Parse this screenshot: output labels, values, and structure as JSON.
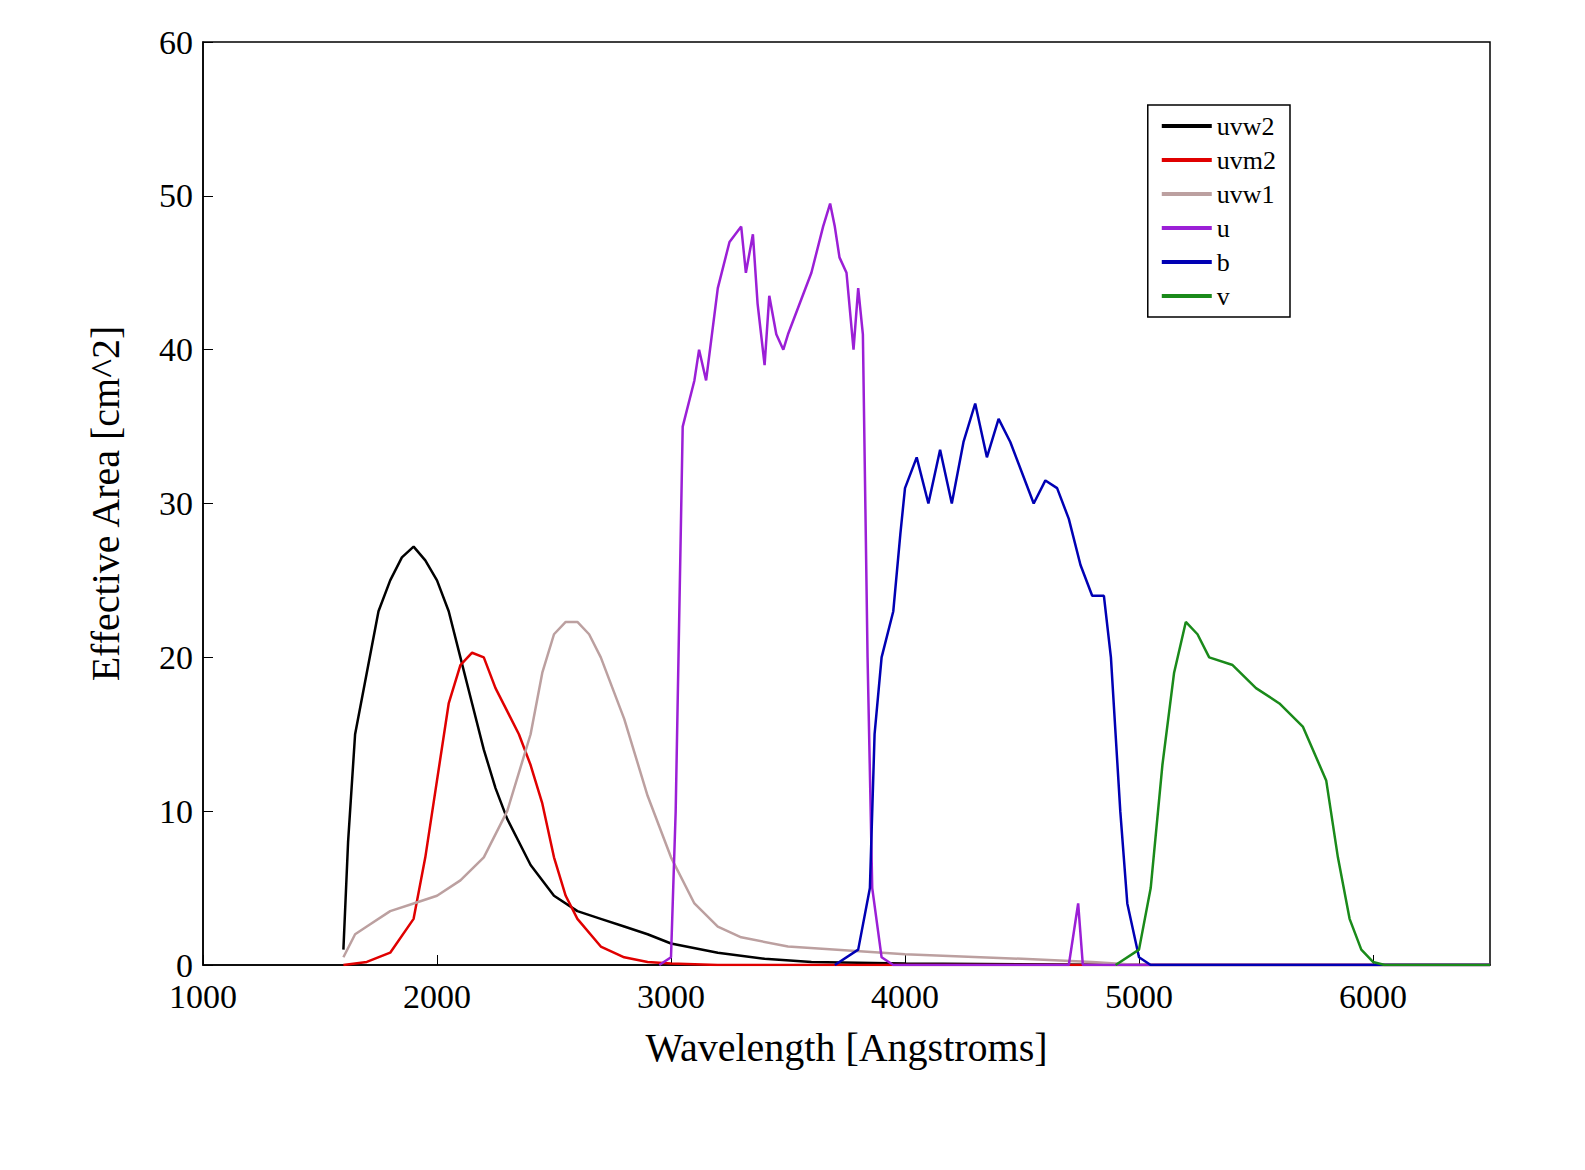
{
  "chart_data": {
    "type": "line",
    "x_label": "Wavelength [Angstroms]",
    "y_label": "Effective Area [cm^2]",
    "xlim": [
      1000,
      6500
    ],
    "xticks": [
      1000,
      2000,
      3000,
      4000,
      5000,
      6000
    ],
    "ylim": [
      0,
      60
    ],
    "yticks": [
      0,
      10,
      20,
      30,
      40,
      50,
      60
    ],
    "grid": false,
    "legend": "upper right",
    "series": [
      {
        "name": "uvw2",
        "color": "#000000",
        "x": [
          1600,
          1620,
          1650,
          1700,
          1750,
          1800,
          1850,
          1900,
          1950,
          2000,
          2050,
          2100,
          2150,
          2200,
          2250,
          2300,
          2400,
          2500,
          2600,
          2700,
          2800,
          2900,
          3000,
          3200,
          3400,
          3600,
          4000,
          5000,
          6500
        ],
        "values": [
          1,
          8,
          15,
          19,
          23,
          25,
          26.5,
          27.2,
          26.3,
          25,
          23,
          20,
          17,
          14,
          11.5,
          9.5,
          6.5,
          4.5,
          3.5,
          3,
          2.5,
          2,
          1.4,
          0.8,
          0.4,
          0.2,
          0.1,
          0,
          0
        ]
      },
      {
        "name": "uvm2",
        "color": "#e00000",
        "x": [
          1600,
          1700,
          1800,
          1900,
          1950,
          2000,
          2050,
          2100,
          2150,
          2200,
          2250,
          2300,
          2350,
          2400,
          2450,
          2500,
          2550,
          2600,
          2700,
          2800,
          2900,
          3000,
          3200,
          6500
        ],
        "values": [
          0,
          0.2,
          0.8,
          3,
          7,
          12,
          17,
          19.5,
          20.3,
          20,
          18,
          16.5,
          15,
          13,
          10.5,
          7,
          4.5,
          3,
          1.2,
          0.5,
          0.2,
          0.1,
          0,
          0
        ]
      },
      {
        "name": "uvw1",
        "color": "#bca0a0",
        "x": [
          1600,
          1650,
          1700,
          1800,
          1900,
          2000,
          2100,
          2200,
          2300,
          2400,
          2450,
          2500,
          2550,
          2600,
          2650,
          2700,
          2800,
          2900,
          3000,
          3100,
          3200,
          3300,
          3500,
          4000,
          4500,
          4800,
          5000,
          6500
        ],
        "values": [
          0.5,
          2,
          2.5,
          3.5,
          4,
          4.5,
          5.5,
          7,
          10,
          15,
          19,
          21.5,
          22.3,
          22.3,
          21.5,
          20,
          16,
          11,
          7,
          4,
          2.5,
          1.8,
          1.2,
          0.7,
          0.4,
          0.2,
          0,
          0
        ]
      },
      {
        "name": "u",
        "color": "#9b1fd6",
        "x": [
          2950,
          3000,
          3020,
          3050,
          3100,
          3120,
          3150,
          3200,
          3250,
          3300,
          3320,
          3350,
          3370,
          3400,
          3420,
          3450,
          3480,
          3500,
          3550,
          3600,
          3650,
          3680,
          3700,
          3720,
          3750,
          3780,
          3800,
          3820,
          3840,
          3860,
          3900,
          3950,
          4700,
          4740,
          4760,
          6500
        ],
        "values": [
          0,
          0.5,
          10,
          35,
          38,
          40,
          38,
          44,
          47,
          48,
          45,
          47.5,
          43,
          39,
          43.5,
          41,
          40,
          41,
          43,
          45,
          48,
          49.5,
          48,
          46,
          45,
          40,
          44,
          41,
          20,
          5,
          0.5,
          0,
          0,
          4,
          0,
          0
        ]
      },
      {
        "name": "b",
        "color": "#0000b4",
        "x": [
          3700,
          3800,
          3850,
          3870,
          3900,
          3950,
          3980,
          4000,
          4050,
          4100,
          4150,
          4200,
          4250,
          4300,
          4350,
          4400,
          4450,
          4500,
          4550,
          4600,
          4650,
          4700,
          4750,
          4800,
          4850,
          4880,
          4920,
          4950,
          5000,
          5050,
          6500
        ],
        "values": [
          0,
          1,
          5,
          15,
          20,
          23,
          28,
          31,
          33,
          30,
          33.5,
          30,
          34,
          36.5,
          33,
          35.5,
          34,
          32,
          30,
          31.5,
          31,
          29,
          26,
          24,
          24,
          20,
          10,
          4,
          0.5,
          0,
          0
        ]
      },
      {
        "name": "v",
        "color": "#1a8a1a",
        "x": [
          4900,
          5000,
          5050,
          5100,
          5150,
          5200,
          5250,
          5300,
          5400,
          5500,
          5600,
          5700,
          5800,
          5850,
          5900,
          5950,
          6000,
          6050,
          6500
        ],
        "values": [
          0,
          1,
          5,
          13,
          19,
          22.3,
          21.5,
          20,
          19.5,
          18,
          17,
          15.5,
          12,
          7,
          3,
          1,
          0.2,
          0,
          0
        ]
      }
    ]
  }
}
